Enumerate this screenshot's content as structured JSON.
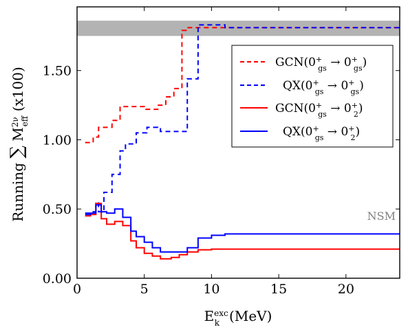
{
  "chart_data": {
    "type": "line",
    "xlabel": "E_k^exc(MeV)",
    "ylabel": "Running Σ M_eff^2ν (x100)",
    "xlim": [
      0,
      24
    ],
    "ylim": [
      0,
      1.96
    ],
    "x_ticks": [
      0,
      5,
      10,
      15,
      20
    ],
    "y_ticks": [
      0.0,
      0.5,
      1.0,
      1.5
    ],
    "x_tick_labels": [
      "0",
      "5",
      "10",
      "15",
      "20"
    ],
    "y_tick_labels": [
      "0.00",
      "0.50",
      "1.00",
      "1.50"
    ],
    "grid": false,
    "legend_position": "top-right",
    "band": {
      "label": "NSM",
      "y_range": [
        1.75,
        1.86
      ],
      "color": "#b3b3b3"
    },
    "nsm_label": "NSM",
    "series": [
      {
        "name": "GCN(0gs+ → 0gs+)",
        "color": "#ff0000",
        "dash": "dashed",
        "x": [
          0.6,
          1.2,
          1.6,
          2.6,
          3.2,
          4.0,
          5.0,
          6.0,
          6.6,
          7.2,
          7.8,
          8.2,
          9.0,
          24
        ],
        "y": [
          0.98,
          1.02,
          1.09,
          1.14,
          1.24,
          1.24,
          1.22,
          1.25,
          1.31,
          1.37,
          1.79,
          1.81,
          1.81,
          1.81
        ]
      },
      {
        "name": "QX(0gs+ → 0gs+)",
        "color": "#0000ff",
        "dash": "dashed",
        "x": [
          0.6,
          1.2,
          1.4,
          1.6,
          2.0,
          2.6,
          3.2,
          3.6,
          4.4,
          5.2,
          6.0,
          6.2,
          7.6,
          8.2,
          9.0,
          10.4,
          11.0,
          24
        ],
        "y": [
          0.47,
          0.48,
          0.55,
          0.48,
          0.62,
          0.75,
          0.92,
          0.97,
          1.05,
          1.09,
          1.08,
          1.06,
          1.06,
          1.44,
          1.83,
          1.83,
          1.81,
          1.81
        ]
      },
      {
        "name": "GCN(0gs+ → 02+)",
        "color": "#ff0000",
        "dash": "solid",
        "x": [
          0.6,
          1.0,
          1.4,
          1.8,
          2.2,
          2.8,
          3.4,
          4.0,
          4.4,
          5.0,
          5.6,
          6.2,
          7.0,
          7.6,
          8.2,
          9.0,
          10.0,
          11.0,
          24
        ],
        "y": [
          0.45,
          0.46,
          0.54,
          0.43,
          0.39,
          0.41,
          0.38,
          0.27,
          0.22,
          0.18,
          0.16,
          0.14,
          0.15,
          0.17,
          0.19,
          0.205,
          0.21,
          0.21,
          0.21
        ]
      },
      {
        "name": "QX(0gs+ → 02+)",
        "color": "#0000ff",
        "dash": "solid",
        "x": [
          0.6,
          1.0,
          1.4,
          1.8,
          2.2,
          2.8,
          3.4,
          4.0,
          4.4,
          5.0,
          5.6,
          6.2,
          6.6,
          7.2,
          7.6,
          8.2,
          9.0,
          10.0,
          11.0,
          24
        ],
        "y": [
          0.46,
          0.47,
          0.53,
          0.48,
          0.47,
          0.5,
          0.44,
          0.34,
          0.3,
          0.26,
          0.22,
          0.19,
          0.19,
          0.19,
          0.19,
          0.22,
          0.29,
          0.31,
          0.32,
          0.32
        ]
      }
    ]
  },
  "legend": [
    {
      "main": "GCN(0",
      "sub": "gs",
      "mid": " → 0",
      "sub2": "gs",
      "end": ")"
    },
    {
      "main": "QX(0",
      "sub": "gs",
      "mid": " → 0",
      "sub2": "gs",
      "end": ")"
    },
    {
      "main": "GCN(0",
      "sub": "gs",
      "mid": " → 0",
      "sub2": "2",
      "end": ")"
    },
    {
      "main": "QX(0",
      "sub": "gs",
      "mid": " → 0",
      "sub2": "2",
      "end": ")"
    }
  ]
}
